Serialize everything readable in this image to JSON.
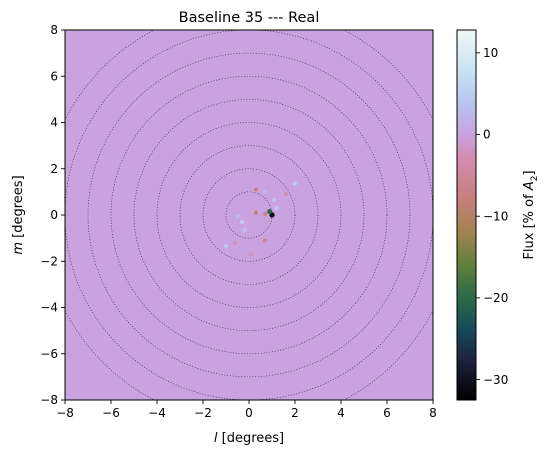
{
  "chart_data": {
    "type": "heatmap",
    "title": "Baseline 35 --- Real",
    "xlabel": {
      "var": "l",
      "rest": " [degrees]"
    },
    "ylabel": {
      "var": "m",
      "rest": " [degrees]"
    },
    "xlim": [
      -8,
      8
    ],
    "ylim": [
      -8,
      8
    ],
    "x_ticks": [
      -8,
      -6,
      -4,
      -2,
      0,
      2,
      4,
      6,
      8
    ],
    "y_ticks": [
      -8,
      -6,
      -4,
      -2,
      0,
      2,
      4,
      6,
      8
    ],
    "x_tick_labels": [
      "−8",
      "−6",
      "−4",
      "−2",
      "0",
      "2",
      "4",
      "6",
      "8"
    ],
    "y_tick_labels": [
      "−8",
      "−6",
      "−4",
      "−2",
      "0",
      "2",
      "4",
      "6",
      "8"
    ],
    "background_color": "#c9a2df",
    "grid": "dotted concentric circles",
    "circle_radii": [
      1,
      2,
      3,
      4,
      5,
      6,
      7,
      8,
      9
    ],
    "colorbar": {
      "label": {
        "prefix": "Flux [% of ",
        "var": "A",
        "sub": "2",
        "suffix": "]"
      },
      "range": [
        -32.5,
        12.8
      ],
      "ticks": [
        10,
        0,
        -10,
        -20,
        -30
      ],
      "tick_labels": [
        "10",
        "0",
        "−10",
        "−20",
        "−30"
      ],
      "colormap": "cubehelix",
      "stops": [
        {
          "value": 12.8,
          "color": "#eef8f4"
        },
        {
          "value": 8,
          "color": "#c9e4f2"
        },
        {
          "value": 4,
          "color": "#b7c6f0"
        },
        {
          "value": 0,
          "color": "#c9a2df"
        },
        {
          "value": -3,
          "color": "#d48cb0"
        },
        {
          "value": -8,
          "color": "#c67f7a"
        },
        {
          "value": -12,
          "color": "#a28450"
        },
        {
          "value": -16,
          "color": "#607f3c"
        },
        {
          "value": -20,
          "color": "#2a6a48"
        },
        {
          "value": -24,
          "color": "#17495a"
        },
        {
          "value": -28,
          "color": "#1d1f3a"
        },
        {
          "value": -32.5,
          "color": "#000000"
        }
      ]
    },
    "sources": [
      {
        "l": 1.0,
        "m": 0.0,
        "flux": -32
      },
      {
        "l": 0.9,
        "m": 0.15,
        "flux": -20
      },
      {
        "l": 0.3,
        "m": 1.1,
        "flux": -8
      },
      {
        "l": 0.3,
        "m": 0.1,
        "flux": -9
      },
      {
        "l": 0.7,
        "m": 0.05,
        "flux": -7
      },
      {
        "l": 0.7,
        "m": -1.1,
        "flux": -7
      },
      {
        "l": 2.0,
        "m": 1.35,
        "flux": 5
      },
      {
        "l": 1.2,
        "m": 0.3,
        "flux": 5
      },
      {
        "l": 1.1,
        "m": 0.65,
        "flux": 4
      },
      {
        "l": 0.7,
        "m": 1.0,
        "flux": 3
      },
      {
        "l": -0.3,
        "m": -0.3,
        "flux": 6
      },
      {
        "l": -0.2,
        "m": -0.65,
        "flux": 4
      },
      {
        "l": -1.0,
        "m": -1.35,
        "flux": 5
      },
      {
        "l": -0.5,
        "m": -0.05,
        "flux": 3
      },
      {
        "l": -0.6,
        "m": -1.2,
        "flux": -3
      },
      {
        "l": 1.6,
        "m": 0.9,
        "flux": -3
      },
      {
        "l": 0.1,
        "m": -1.7,
        "flux": -2
      }
    ]
  }
}
